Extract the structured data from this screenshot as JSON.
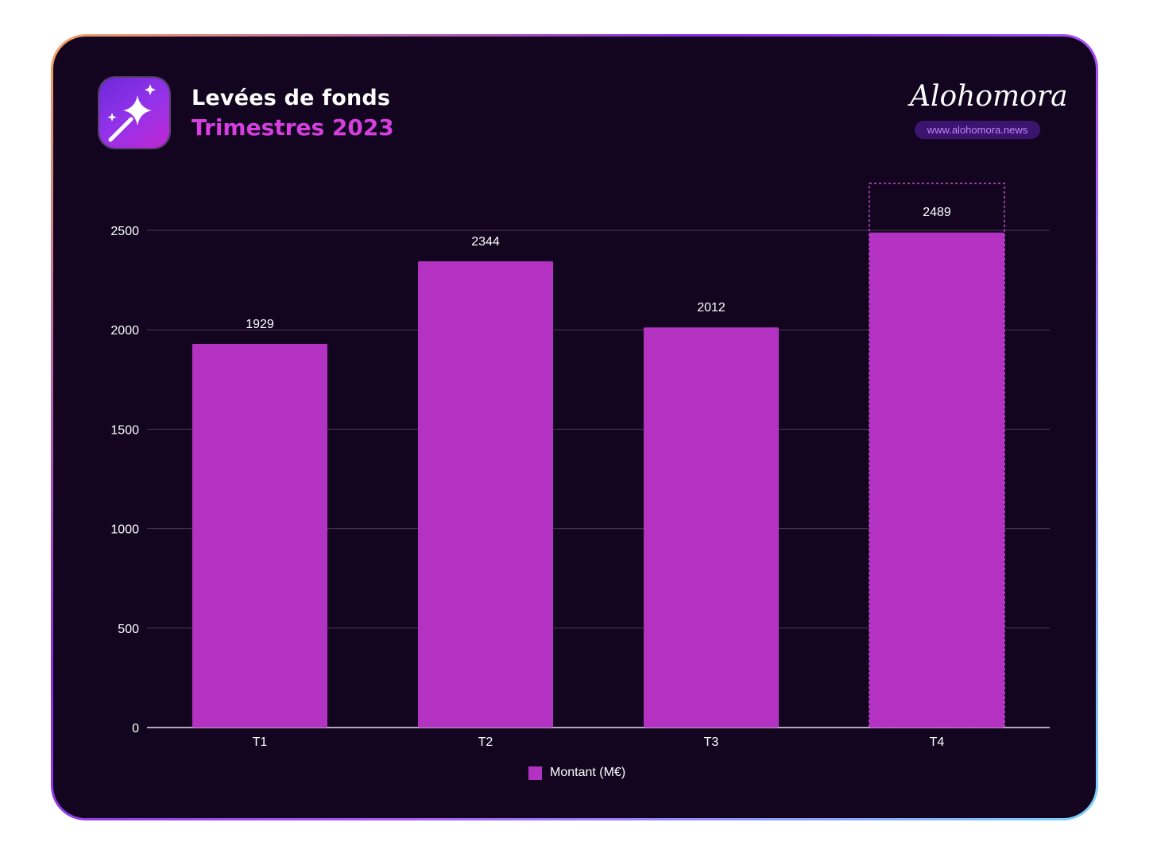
{
  "header": {
    "title": "Levées de fonds",
    "subtitle": "Trimestres 2023",
    "brand_logo": "Alohomora",
    "brand_url": "www.alohomora.news"
  },
  "icons": {
    "app": "magic-wand-icon",
    "legend": "legend-swatch"
  },
  "colors": {
    "background": "#130520",
    "bar": "#b332c2",
    "subtitle": "#d63ee0",
    "highlight_outline": "#c94fd6"
  },
  "chart_data": {
    "type": "bar",
    "title": "Levées de fonds",
    "subtitle": "Trimestres 2023",
    "categories": [
      "T1",
      "T2",
      "T3",
      "T4"
    ],
    "series": [
      {
        "name": "Montant (M€)",
        "values": [
          1929,
          2344,
          2012,
          2489
        ]
      }
    ],
    "data_labels": [
      "1929",
      "2344",
      "2012",
      "2489"
    ],
    "yticks": [
      "0",
      "500",
      "1000",
      "1500",
      "2000",
      "2500"
    ],
    "ylim": [
      0,
      2500
    ],
    "grid": true,
    "legend": "bottom-center",
    "highlighted_category": "T4"
  }
}
